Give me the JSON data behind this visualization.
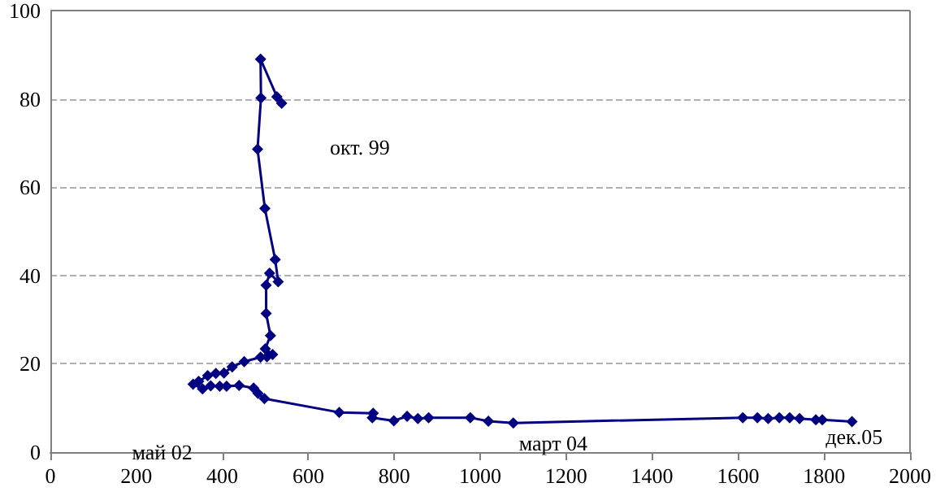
{
  "chart_data": {
    "type": "line",
    "marker": "diamond",
    "line_style": "solid",
    "grid": "y",
    "xlim": [
      0,
      2000
    ],
    "xticks": [
      0,
      200,
      400,
      600,
      800,
      1000,
      1200,
      1400,
      1600,
      1800,
      2000
    ],
    "ylim": [
      0,
      100
    ],
    "yticks": [
      0,
      20,
      40,
      60,
      80,
      100
    ],
    "series": [
      {
        "color": "#000080",
        "x": [
          538,
          527,
          489,
          490,
          482,
          499,
          523,
          530,
          510,
          502,
          502,
          512,
          500,
          517,
          504,
          489,
          451,
          423,
          404,
          385,
          366,
          345,
          332,
          354,
          373,
          394,
          410,
          439,
          473,
          483,
          498,
          672,
          751,
          749,
          799,
          830,
          855,
          880,
          977,
          1019,
          1077,
          1611,
          1645,
          1670,
          1696,
          1720,
          1743,
          1781,
          1796,
          1865
        ],
        "values": [
          79,
          80.5,
          89,
          80.2,
          68.6,
          55.2,
          43.6,
          38.6,
          40.5,
          37.8,
          31.4,
          26.4,
          23.4,
          22.1,
          21.6,
          21.5,
          20.5,
          19.3,
          17.9,
          17.8,
          17.3,
          16,
          15.4,
          14.3,
          15,
          14.9,
          14.9,
          15.1,
          14.5,
          13.3,
          12.1,
          9,
          8.8,
          7.8,
          7.1,
          8.1,
          7.6,
          7.8,
          7.8,
          7,
          6.6,
          7.8,
          7.8,
          7.6,
          7.8,
          7.8,
          7.6,
          7.3,
          7.3,
          6.9
        ]
      }
    ],
    "annotations": [
      "окт. 99",
      "май 02",
      "март 04",
      "дек.05"
    ]
  }
}
